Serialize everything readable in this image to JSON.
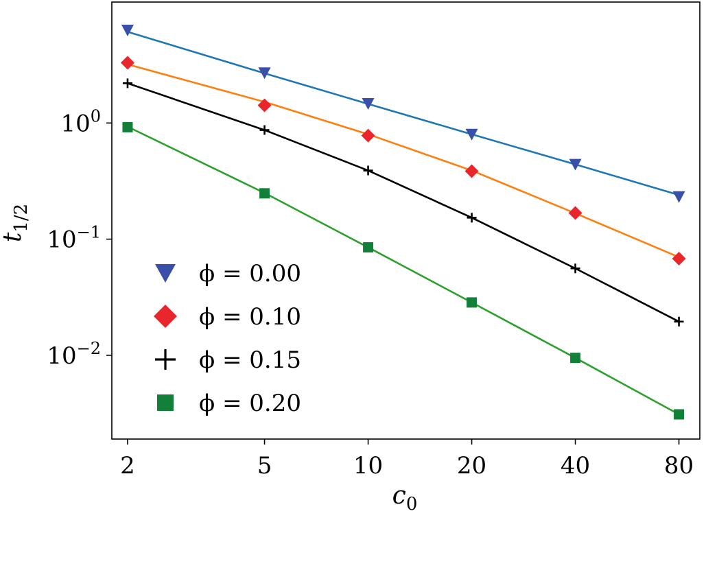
{
  "chart_data": {
    "type": "line",
    "x_scale": "log",
    "y_scale": "log",
    "xlabel": "c0",
    "ylabel": "t1/2",
    "xlim": [
      1.8,
      92
    ],
    "ylim": [
      0.0019,
      11
    ],
    "x_ticks": [
      2,
      5,
      10,
      20,
      40,
      80
    ],
    "x_tick_labels": [
      "2",
      "5",
      "10",
      "20",
      "40",
      "80"
    ],
    "y_ticks": [
      1,
      0.1,
      0.01
    ],
    "y_tick_labels": [
      {
        "base": "10",
        "exp": "0"
      },
      {
        "base": "10",
        "exp": "−1"
      },
      {
        "base": "10",
        "exp": "−2"
      }
    ],
    "grid": false,
    "legend_position": "lower-left",
    "x": [
      2,
      5,
      10,
      20,
      40,
      80
    ],
    "series": [
      {
        "name": "ϕ = 0.00",
        "marker": "triangle-down",
        "marker_color": "#3a4fa8",
        "line_color": "#1f77b4",
        "values": [
          6.3,
          2.7,
          1.47,
          0.8,
          0.44,
          0.232
        ],
        "fit": [
          6.1,
          2.68,
          1.46,
          0.8,
          0.44,
          0.24
        ]
      },
      {
        "name": "ϕ = 0.10",
        "marker": "diamond",
        "marker_color": "#e8262c",
        "line_color": "#ff7f0e",
        "values": [
          3.3,
          1.42,
          0.78,
          0.385,
          0.168,
          0.068
        ],
        "fit": [
          3.2,
          1.52,
          0.8,
          0.39,
          0.167,
          0.07
        ]
      },
      {
        "name": "ϕ = 0.15",
        "marker": "plus",
        "marker_color": "#000000",
        "line_color": "#000000",
        "values": [
          2.2,
          0.87,
          0.39,
          0.153,
          0.056,
          0.0195
        ],
        "fit": [
          2.2,
          0.87,
          0.39,
          0.153,
          0.056,
          0.0195
        ]
      },
      {
        "name": "ϕ = 0.20",
        "marker": "square",
        "marker_color": "#138039",
        "line_color": "#2ca02c",
        "values": [
          0.92,
          0.248,
          0.085,
          0.0285,
          0.0095,
          0.0031
        ],
        "fit": [
          0.93,
          0.25,
          0.085,
          0.0285,
          0.0095,
          0.0031
        ]
      }
    ]
  }
}
